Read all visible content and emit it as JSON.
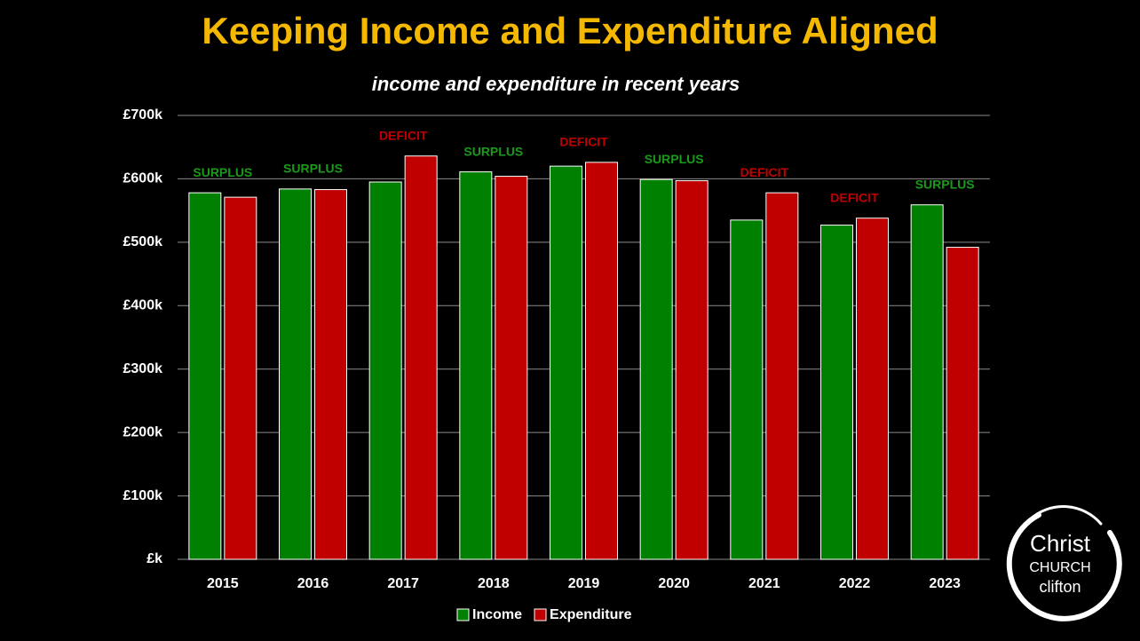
{
  "chart_data": {
    "type": "bar",
    "title": "Keeping Income and Expenditure Aligned",
    "subtitle": "income and expenditure in recent years",
    "categories": [
      "2015",
      "2016",
      "2017",
      "2018",
      "2019",
      "2020",
      "2021",
      "2022",
      "2023"
    ],
    "category_colors": [
      "#ffffff",
      "#ffffff",
      "#ffffff",
      "#ffffff",
      "#ffffff",
      "#ffffff",
      "#ffffff",
      "#ffffff",
      "#f5b800"
    ],
    "series": [
      {
        "name": "Income",
        "color": "#008000",
        "values": [
          578,
          584,
          595,
          611,
          620,
          599,
          535,
          527,
          559
        ]
      },
      {
        "name": "Expenditure",
        "color": "#c00000",
        "values": [
          571,
          583,
          636,
          604,
          626,
          597,
          578,
          538,
          492
        ]
      }
    ],
    "annotations": [
      {
        "text": "SURPLUS",
        "color": "#1a9a1a"
      },
      {
        "text": "SURPLUS",
        "color": "#1a9a1a"
      },
      {
        "text": "DEFICIT",
        "color": "#c00000"
      },
      {
        "text": "SURPLUS",
        "color": "#1a9a1a"
      },
      {
        "text": "DEFICIT",
        "color": "#c00000"
      },
      {
        "text": "SURPLUS",
        "color": "#1a9a1a"
      },
      {
        "text": "DEFICIT",
        "color": "#c00000"
      },
      {
        "text": "DEFICIT",
        "color": "#c00000"
      },
      {
        "text": "SURPLUS",
        "color": "#1a9a1a"
      }
    ],
    "ylim": [
      0,
      700
    ],
    "yticks": [
      {
        "value": 0,
        "label": "£k"
      },
      {
        "value": 100,
        "label": "£100k"
      },
      {
        "value": 200,
        "label": "£200k"
      },
      {
        "value": 300,
        "label": "£300k"
      },
      {
        "value": 400,
        "label": "£400k"
      },
      {
        "value": 500,
        "label": "£500k"
      },
      {
        "value": 600,
        "label": "£600k"
      },
      {
        "value": 700,
        "label": "£700k"
      }
    ],
    "grid": true,
    "legend": "bottom"
  },
  "logo": {
    "line1": "Christ",
    "line2": "CHURCH",
    "line3": "clifton"
  }
}
